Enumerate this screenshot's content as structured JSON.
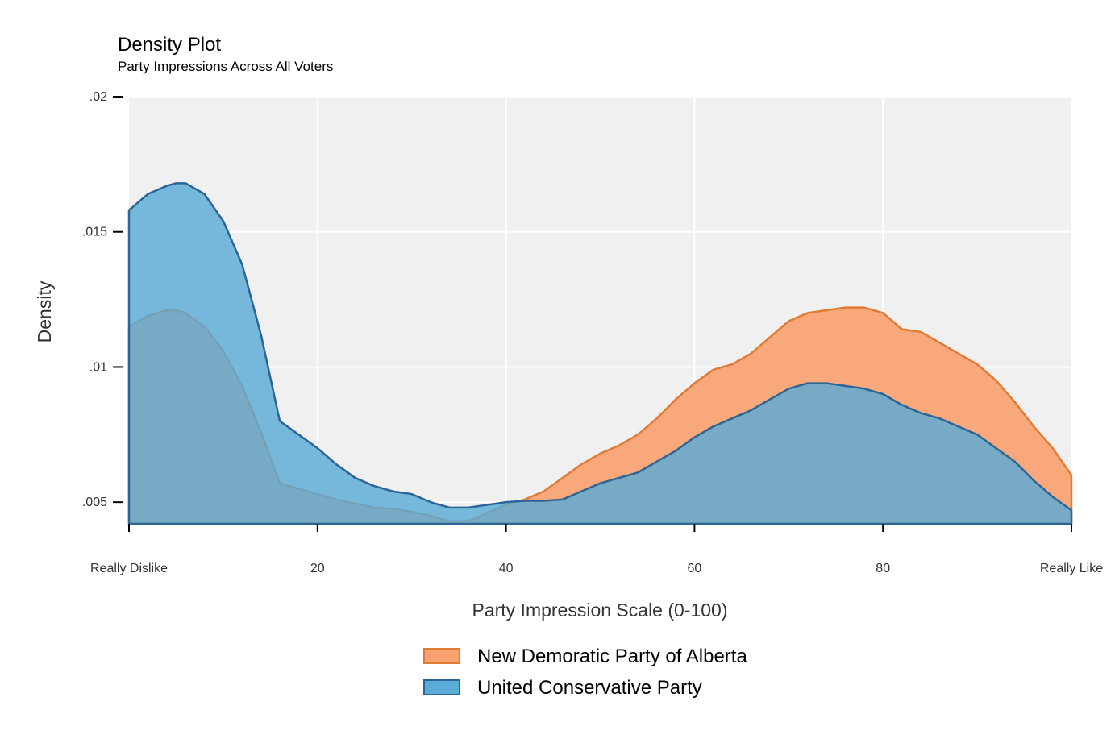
{
  "chart_data": {
    "type": "area",
    "title": "Density Plot",
    "subtitle": "Party Impressions Across All Voters",
    "xlabel": "Party Impression Scale (0-100)",
    "ylabel": "Density",
    "xlim": [
      0,
      100
    ],
    "ylim": [
      0.0042,
      0.02
    ],
    "x_ticks": [
      {
        "value": 0,
        "label": "Really Dislike"
      },
      {
        "value": 20,
        "label": "20"
      },
      {
        "value": 40,
        "label": "40"
      },
      {
        "value": 60,
        "label": "60"
      },
      {
        "value": 80,
        "label": "80"
      },
      {
        "value": 100,
        "label": "Really Like"
      }
    ],
    "y_ticks": [
      {
        "value": 0.005,
        "label": ".005"
      },
      {
        "value": 0.01,
        "label": ".01"
      },
      {
        "value": 0.015,
        "label": ".015"
      },
      {
        "value": 0.02,
        "label": ".02"
      }
    ],
    "grid": true,
    "legend_position": "bottom",
    "x": [
      0,
      2,
      4,
      5,
      6,
      8,
      10,
      12,
      14,
      16,
      18,
      20,
      22,
      24,
      26,
      28,
      30,
      32,
      34,
      36,
      38,
      40,
      42,
      44,
      46,
      48,
      50,
      52,
      54,
      56,
      58,
      60,
      62,
      64,
      66,
      68,
      70,
      72,
      74,
      76,
      78,
      80,
      82,
      84,
      86,
      88,
      90,
      92,
      94,
      96,
      98,
      100
    ],
    "series": [
      {
        "name": "New Demoratic Party of Alberta",
        "fill": "#f9a271",
        "stroke": "#e07b35",
        "values": [
          0.0115,
          0.0119,
          0.0121,
          0.0121,
          0.012,
          0.0115,
          0.0106,
          0.0093,
          0.0076,
          0.0057,
          0.0055,
          0.0053,
          0.0051,
          0.00495,
          0.0048,
          0.00475,
          0.00465,
          0.0045,
          0.0043,
          0.0043,
          0.0046,
          0.0049,
          0.0051,
          0.0054,
          0.0059,
          0.0064,
          0.0068,
          0.0071,
          0.0075,
          0.0081,
          0.0088,
          0.0094,
          0.0099,
          0.0101,
          0.0105,
          0.0111,
          0.0117,
          0.012,
          0.0121,
          0.0122,
          0.0122,
          0.012,
          0.0114,
          0.0113,
          0.0109,
          0.0105,
          0.0101,
          0.0095,
          0.0087,
          0.0078,
          0.007,
          0.006
        ]
      },
      {
        "name": "United Conservative Party",
        "fill": "#5aabd6",
        "stroke": "#2c6596",
        "values": [
          0.0158,
          0.0164,
          0.0167,
          0.0168,
          0.0168,
          0.0164,
          0.0154,
          0.0138,
          0.0112,
          0.008,
          0.0075,
          0.007,
          0.0064,
          0.0059,
          0.0056,
          0.0054,
          0.0053,
          0.005,
          0.0048,
          0.0048,
          0.0049,
          0.005,
          0.00505,
          0.00505,
          0.0051,
          0.0054,
          0.0057,
          0.0059,
          0.0061,
          0.0065,
          0.0069,
          0.0074,
          0.0078,
          0.0081,
          0.0084,
          0.0088,
          0.0092,
          0.0094,
          0.0094,
          0.0093,
          0.0092,
          0.009,
          0.0086,
          0.0083,
          0.0081,
          0.0078,
          0.0075,
          0.007,
          0.0065,
          0.0058,
          0.0052,
          0.0047
        ]
      }
    ]
  }
}
